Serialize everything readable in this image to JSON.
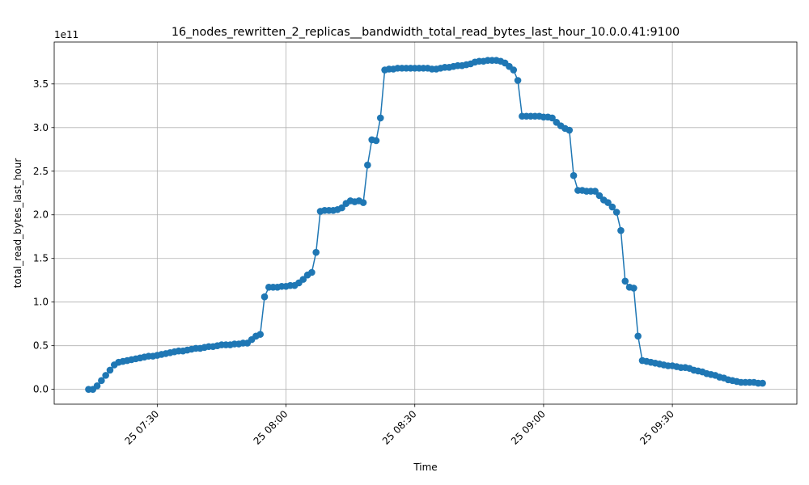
{
  "chart_data": {
    "type": "line",
    "title": "16_nodes_rewritten_2_replicas__bandwidth_total_read_bytes_last_hour_10.0.0.41:9100",
    "x_label": "Time",
    "y_label": "total_read_bytes_last_hour",
    "y_offset_text": "1e11",
    "grid": true,
    "xlim": [
      "25 07:06",
      "25 09:59"
    ],
    "xticks": [
      "25 07:30",
      "25 08:00",
      "25 08:30",
      "25 09:00",
      "25 09:30"
    ],
    "ylim": [
      -0.17,
      3.98
    ],
    "yticks": [
      {
        "value": 0,
        "label": "0.0"
      },
      0.5,
      {
        "value": 1,
        "label": "1.0"
      },
      1.5,
      {
        "value": 2,
        "label": "2.0"
      },
      2.5,
      {
        "value": 3,
        "label": "3.0"
      },
      3.5
    ],
    "x": [
      "25 07:14",
      "25 07:15",
      "25 07:16",
      "25 07:17",
      "25 07:18",
      "25 07:19",
      "25 07:20",
      "25 07:21",
      "25 07:22",
      "25 07:23",
      "25 07:24",
      "25 07:25",
      "25 07:26",
      "25 07:27",
      "25 07:28",
      "25 07:29",
      "25 07:30",
      "25 07:31",
      "25 07:32",
      "25 07:33",
      "25 07:34",
      "25 07:35",
      "25 07:36",
      "25 07:37",
      "25 07:38",
      "25 07:39",
      "25 07:40",
      "25 07:41",
      "25 07:42",
      "25 07:43",
      "25 07:44",
      "25 07:45",
      "25 07:46",
      "25 07:47",
      "25 07:48",
      "25 07:49",
      "25 07:50",
      "25 07:51",
      "25 07:52",
      "25 07:53",
      "25 07:54",
      "25 07:55",
      "25 07:56",
      "25 07:57",
      "25 07:58",
      "25 07:59",
      "25 08:00",
      "25 08:01",
      "25 08:02",
      "25 08:03",
      "25 08:04",
      "25 08:05",
      "25 08:06",
      "25 08:07",
      "25 08:08",
      "25 08:09",
      "25 08:10",
      "25 08:11",
      "25 08:12",
      "25 08:13",
      "25 08:14",
      "25 08:15",
      "25 08:16",
      "25 08:17",
      "25 08:18",
      "25 08:19",
      "25 08:20",
      "25 08:21",
      "25 08:22",
      "25 08:23",
      "25 08:24",
      "25 08:25",
      "25 08:26",
      "25 08:27",
      "25 08:28",
      "25 08:29",
      "25 08:30",
      "25 08:31",
      "25 08:32",
      "25 08:33",
      "25 08:34",
      "25 08:35",
      "25 08:36",
      "25 08:37",
      "25 08:38",
      "25 08:39",
      "25 08:40",
      "25 08:41",
      "25 08:42",
      "25 08:43",
      "25 08:44",
      "25 08:45",
      "25 08:46",
      "25 08:47",
      "25 08:48",
      "25 08:49",
      "25 08:50",
      "25 08:51",
      "25 08:52",
      "25 08:53",
      "25 08:54",
      "25 08:55",
      "25 08:56",
      "25 08:57",
      "25 08:58",
      "25 08:59",
      "25 09:00",
      "25 09:01",
      "25 09:02",
      "25 09:03",
      "25 09:04",
      "25 09:05",
      "25 09:06",
      "25 09:07",
      "25 09:08",
      "25 09:09",
      "25 09:10",
      "25 09:11",
      "25 09:12",
      "25 09:13",
      "25 09:14",
      "25 09:15",
      "25 09:16",
      "25 09:17",
      "25 09:18",
      "25 09:19",
      "25 09:20",
      "25 09:21",
      "25 09:22",
      "25 09:23",
      "25 09:24",
      "25 09:25",
      "25 09:26",
      "25 09:27",
      "25 09:28",
      "25 09:29",
      "25 09:30",
      "25 09:31",
      "25 09:32",
      "25 09:33",
      "25 09:34",
      "25 09:35",
      "25 09:36",
      "25 09:37",
      "25 09:38",
      "25 09:39",
      "25 09:40",
      "25 09:41",
      "25 09:42",
      "25 09:43",
      "25 09:44",
      "25 09:45",
      "25 09:46",
      "25 09:47",
      "25 09:48",
      "25 09:49",
      "25 09:50",
      "25 09:51"
    ],
    "series": [
      {
        "color": "#1f77b4",
        "values": [
          0,
          0,
          0.04,
          0.1,
          0.16,
          0.22,
          0.28,
          0.31,
          0.32,
          0.33,
          0.34,
          0.35,
          0.36,
          0.37,
          0.38,
          0.38,
          0.39,
          0.4,
          0.41,
          0.42,
          0.43,
          0.44,
          0.44,
          0.45,
          0.46,
          0.47,
          0.47,
          0.48,
          0.49,
          0.49,
          0.5,
          0.51,
          0.51,
          0.51,
          0.52,
          0.52,
          0.53,
          0.53,
          0.57,
          0.61,
          0.63,
          1.06,
          1.17,
          1.17,
          1.17,
          1.18,
          1.18,
          1.19,
          1.19,
          1.22,
          1.26,
          1.31,
          1.34,
          1.57,
          2.04,
          2.05,
          2.05,
          2.05,
          2.06,
          2.08,
          2.13,
          2.16,
          2.15,
          2.16,
          2.14,
          2.57,
          2.86,
          2.85,
          3.11,
          3.66,
          3.67,
          3.67,
          3.68,
          3.68,
          3.68,
          3.68,
          3.68,
          3.68,
          3.68,
          3.68,
          3.67,
          3.67,
          3.68,
          3.69,
          3.69,
          3.7,
          3.71,
          3.71,
          3.72,
          3.73,
          3.75,
          3.76,
          3.76,
          3.77,
          3.77,
          3.77,
          3.76,
          3.74,
          3.7,
          3.66,
          3.54,
          3.13,
          3.13,
          3.13,
          3.13,
          3.13,
          3.12,
          3.12,
          3.11,
          3.06,
          3.02,
          2.99,
          2.97,
          2.45,
          2.28,
          2.28,
          2.27,
          2.27,
          2.27,
          2.22,
          2.17,
          2.14,
          2.09,
          2.03,
          1.82,
          1.24,
          1.17,
          1.16,
          0.61,
          0.33,
          0.32,
          0.31,
          0.3,
          0.29,
          0.28,
          0.27,
          0.27,
          0.26,
          0.25,
          0.25,
          0.24,
          0.22,
          0.21,
          0.2,
          0.18,
          0.17,
          0.16,
          0.14,
          0.13,
          0.11,
          0.1,
          0.09,
          0.08,
          0.08,
          0.08,
          0.08,
          0.07,
          0.07
        ]
      }
    ]
  }
}
